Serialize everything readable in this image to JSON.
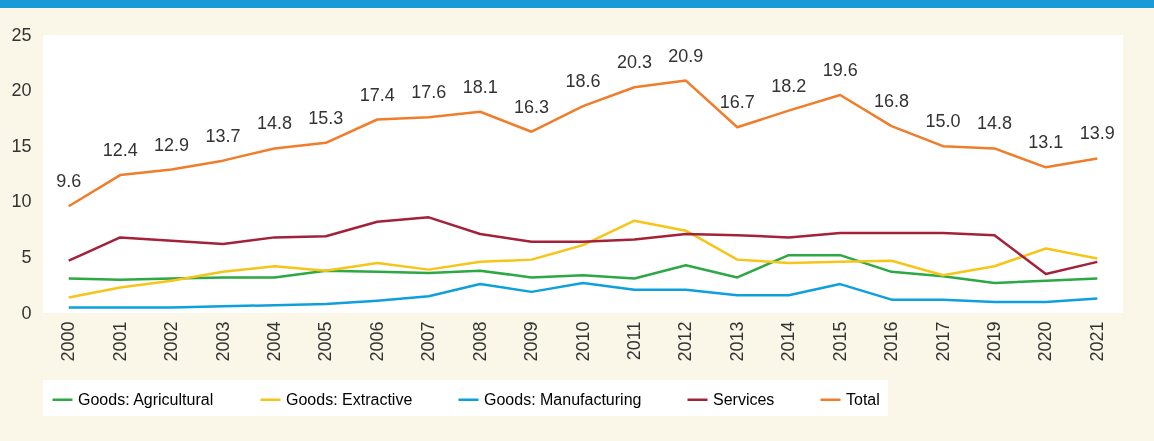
{
  "chart_data": {
    "type": "line",
    "categories": [
      "2000",
      "2001",
      "2002",
      "2003",
      "2004",
      "2005",
      "2006",
      "2007",
      "2008",
      "2009",
      "2010",
      "2011",
      "2012",
      "2013",
      "2014",
      "2015",
      "2016",
      "2017",
      "2019",
      "2020",
      "2021"
    ],
    "ylim": [
      0,
      25
    ],
    "yticks": [
      0,
      5,
      10,
      15,
      20,
      25
    ],
    "grid": false,
    "legend": "bottom",
    "marker": "none",
    "series": [
      {
        "name": "Goods: Agricultural",
        "color": "#2ca844",
        "values": [
          3.1,
          3.0,
          3.1,
          3.2,
          3.2,
          3.8,
          3.7,
          3.6,
          3.8,
          3.2,
          3.4,
          3.1,
          4.3,
          3.2,
          5.2,
          5.2,
          3.7,
          3.3,
          2.7,
          2.9,
          3.1
        ]
      },
      {
        "name": "Goods: Extractive",
        "color": "#f5c518",
        "values": [
          1.4,
          2.3,
          2.9,
          3.7,
          4.2,
          3.8,
          4.5,
          3.9,
          4.6,
          4.8,
          6.1,
          8.3,
          7.4,
          4.8,
          4.5,
          4.6,
          4.7,
          3.4,
          4.2,
          5.8,
          4.9
        ]
      },
      {
        "name": "Goods: Manufacturing",
        "color": "#0ea0dc",
        "values": [
          0.5,
          0.5,
          0.5,
          0.6,
          0.7,
          0.8,
          1.1,
          1.5,
          2.6,
          1.9,
          2.7,
          2.1,
          2.1,
          1.6,
          1.6,
          2.6,
          1.2,
          1.2,
          1.0,
          1.0,
          1.3
        ]
      },
      {
        "name": "Services",
        "color": "#a3223a",
        "values": [
          4.7,
          6.8,
          6.5,
          6.2,
          6.8,
          6.9,
          8.2,
          8.6,
          7.1,
          6.4,
          6.4,
          6.6,
          7.1,
          7.0,
          6.8,
          7.2,
          7.2,
          7.2,
          7.0,
          3.5,
          4.6
        ]
      },
      {
        "name": "Total",
        "color": "#f07d2a",
        "data_labels": true,
        "values": [
          9.6,
          12.4,
          12.9,
          13.7,
          14.8,
          15.3,
          17.4,
          17.6,
          18.1,
          16.3,
          18.6,
          20.3,
          20.9,
          16.7,
          18.2,
          19.6,
          16.8,
          15.0,
          14.8,
          13.1,
          13.9
        ],
        "value_labels": [
          "9.6",
          "12.4",
          "12.9",
          "13.7",
          "14.8",
          "15.3",
          "17.4",
          "17.6",
          "18.1",
          "16.3",
          "18.6",
          "20.3",
          "20.9",
          "16.7",
          "18.2",
          "19.6",
          "16.8",
          "15.0",
          "14.8",
          "13.1",
          "13.9"
        ]
      }
    ]
  }
}
